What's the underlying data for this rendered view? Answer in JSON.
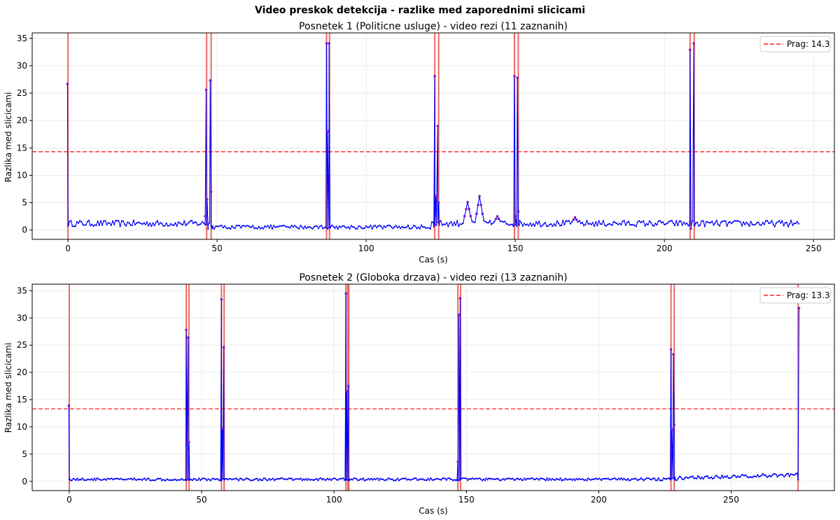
{
  "figure_title": "Video preskok detekcija - razlike med zaporednimi slicicami",
  "chart_data": [
    {
      "type": "line",
      "title": "Posnetek 1 (Politicne usluge) - video rezi (11 zaznanih)",
      "xlabel": "Cas (s)",
      "ylabel": "Razlika med slicicami",
      "xlim": [
        -12,
        257
      ],
      "ylim": [
        -1.7,
        36
      ],
      "xticks": [
        0,
        50,
        100,
        150,
        200,
        250
      ],
      "yticks": [
        0,
        5,
        10,
        15,
        20,
        25,
        30,
        35
      ],
      "grid": true,
      "legend_position": "top-right",
      "colors": {
        "line": "#0000ff",
        "marker": "#7a1fc0",
        "cut": "#e8504a",
        "threshold": "#ff2020"
      },
      "threshold": {
        "label": "Prag: 14.3",
        "value": 14.3
      },
      "cuts": [
        0,
        46.5,
        48.0,
        86.7,
        87.7,
        123.0,
        124.3,
        149.7,
        151.0,
        208.6,
        210.0
      ],
      "x_max": 245,
      "baseline": 1.0,
      "spikes": [
        {
          "x": 0,
          "y": [
            26.7,
            1.0
          ]
        },
        {
          "x": 46.5,
          "y": [
            2.5,
            25.6,
            5.6,
            0.2
          ]
        },
        {
          "x": 48.0,
          "y": [
            27.3,
            7.0,
            0.3
          ]
        },
        {
          "x": 86.7,
          "y": [
            0.5,
            34.1,
            18.0
          ]
        },
        {
          "x": 87.7,
          "y": [
            34.1,
            0.5
          ]
        },
        {
          "x": 123.0,
          "y": [
            0.6,
            28.1,
            6.2
          ]
        },
        {
          "x": 124.3,
          "y": [
            19.0,
            5.0,
            1.5
          ]
        },
        {
          "x": 149.7,
          "y": [
            0.7,
            28.1,
            2.5
          ]
        },
        {
          "x": 151.0,
          "y": [
            27.8,
            3.4,
            0.9
          ]
        },
        {
          "x": 208.6,
          "y": [
            0.8,
            32.9,
            0.2
          ]
        },
        {
          "x": 210.0,
          "y": [
            34.1,
            0.8
          ]
        }
      ],
      "bumps": [
        {
          "x": 134.0,
          "y": 5.1
        },
        {
          "x": 138.0,
          "y": 6.2
        },
        {
          "x": 144.0,
          "y": 2.5
        },
        {
          "x": 170.0,
          "y": 2.3
        }
      ]
    },
    {
      "type": "line",
      "title": "Posnetek 2 (Globoka drzava) - video rezi (13 zaznanih)",
      "xlabel": "Cas (s)",
      "ylabel": "Razlika med slicicami",
      "xlim": [
        -14,
        289
      ],
      "ylim": [
        -1.7,
        36.2
      ],
      "xticks": [
        0,
        50,
        100,
        150,
        200,
        250
      ],
      "yticks": [
        0,
        5,
        10,
        15,
        20,
        25,
        30,
        35
      ],
      "grid": true,
      "legend_position": "top-right",
      "colors": {
        "line": "#0000ff",
        "marker": "#7a1fc0",
        "cut": "#e8504a",
        "threshold": "#ff2020"
      },
      "threshold": {
        "label": "Prag: 13.3",
        "value": 13.3
      },
      "cuts": [
        0,
        44.2,
        45.2,
        57.5,
        58.5,
        104.5,
        105.2,
        105.6,
        146.8,
        147.8,
        227.3,
        228.5,
        275.3
      ],
      "x_max": 275,
      "baseline": 0.3,
      "spikes": [
        {
          "x": 0,
          "y": [
            13.9,
            0.4
          ]
        },
        {
          "x": 44.2,
          "y": [
            0.3,
            27.8,
            6.0
          ]
        },
        {
          "x": 45.2,
          "y": [
            26.4,
            7.2,
            0.3
          ]
        },
        {
          "x": 57.5,
          "y": [
            0.4,
            33.4,
            9.7
          ]
        },
        {
          "x": 58.5,
          "y": [
            24.6,
            0.3
          ]
        },
        {
          "x": 104.5,
          "y": [
            0.3,
            34.5,
            16.5
          ]
        },
        {
          "x": 105.6,
          "y": [
            17.5,
            0.4
          ]
        },
        {
          "x": 146.8,
          "y": [
            0.3,
            3.6,
            30.6
          ]
        },
        {
          "x": 147.8,
          "y": [
            33.6,
            0.4
          ]
        },
        {
          "x": 227.3,
          "y": [
            0.3,
            24.2,
            9.5
          ]
        },
        {
          "x": 228.5,
          "y": [
            23.3,
            10.4,
            0.7
          ]
        },
        {
          "x": 275.3,
          "y": [
            0.3,
            31.8
          ]
        }
      ],
      "bumps": [
        {
          "x": 262.0,
          "y": 1.4
        },
        {
          "x": 251.0,
          "y": 1.0
        }
      ]
    }
  ]
}
